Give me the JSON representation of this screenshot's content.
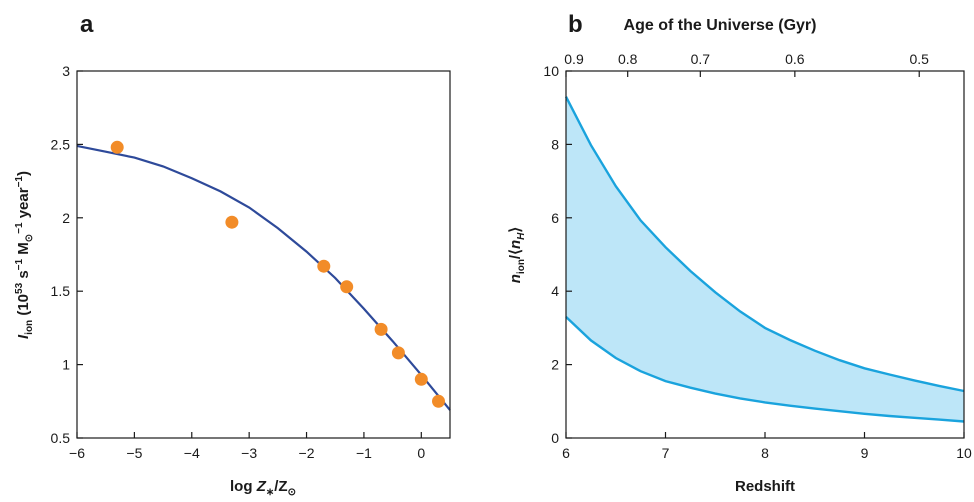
{
  "chart_data": [
    {
      "panel_label": "a",
      "type": "scatter",
      "xlabel": "log Z∗/Z⊙",
      "ylabel": "I_ion (10^53 s^−1 M⊙^−1 year^−1)",
      "xlim": [
        -6,
        0.5
      ],
      "ylim": [
        0.5,
        3
      ],
      "x_ticks": [
        -6,
        -5,
        -4,
        -3,
        -2,
        -1,
        0
      ],
      "x_tick_labels": [
        "−6",
        "−5",
        "−4",
        "−3",
        "−2",
        "−1",
        "0"
      ],
      "y_ticks": [
        0.5,
        1,
        1.5,
        2,
        2.5,
        3
      ],
      "y_tick_labels": [
        "0.5",
        "1",
        "1.5",
        "2",
        "2.5",
        "3"
      ],
      "points": {
        "color": "#f28c28",
        "x": [
          -5.3,
          -3.3,
          -1.7,
          -1.3,
          -0.7,
          -0.4,
          0.0,
          0.3
        ],
        "y": [
          2.48,
          1.97,
          1.67,
          1.53,
          1.24,
          1.08,
          0.9,
          0.75
        ]
      },
      "fit_curve": {
        "color": "#2e4a9a",
        "x": [
          -6.0,
          -5.5,
          -5.0,
          -4.5,
          -4.0,
          -3.5,
          -3.0,
          -2.5,
          -2.0,
          -1.5,
          -1.0,
          -0.5,
          0.0,
          0.5
        ],
        "y": [
          2.49,
          2.45,
          2.41,
          2.35,
          2.27,
          2.18,
          2.07,
          1.93,
          1.77,
          1.59,
          1.38,
          1.16,
          0.93,
          0.69
        ]
      }
    },
    {
      "panel_label": "b",
      "type": "area",
      "xlabel": "Redshift",
      "ylabel": "n_ion/⟨n_H⟩",
      "top_xlabel": "Age of the Universe (Gyr)",
      "xlim": [
        6,
        10
      ],
      "ylim": [
        0,
        10
      ],
      "x_ticks": [
        6,
        7,
        8,
        9,
        10
      ],
      "x_tick_labels": [
        "6",
        "7",
        "8",
        "9",
        "10"
      ],
      "y_ticks": [
        0,
        2,
        4,
        6,
        8,
        10
      ],
      "y_tick_labels": [
        "0",
        "2",
        "4",
        "6",
        "8",
        "10"
      ],
      "top_ticks": [
        {
          "age": "0.9",
          "z": 6.0
        },
        {
          "age": "0.8",
          "z": 6.62
        },
        {
          "age": "0.7",
          "z": 7.35
        },
        {
          "age": "0.6",
          "z": 8.3
        },
        {
          "age": "0.5",
          "z": 9.55
        }
      ],
      "band": {
        "fill": "#bde6f8",
        "line_color": "#1aa3dd",
        "x": [
          6.0,
          6.25,
          6.5,
          6.75,
          7.0,
          7.25,
          7.5,
          7.75,
          8.0,
          8.25,
          8.5,
          8.75,
          9.0,
          9.25,
          9.5,
          9.75,
          10.0
        ],
        "upper": [
          9.3,
          7.98,
          6.86,
          5.93,
          5.2,
          4.55,
          3.97,
          3.45,
          3.0,
          2.67,
          2.38,
          2.12,
          1.9,
          1.73,
          1.57,
          1.42,
          1.28
        ],
        "lower": [
          3.3,
          2.66,
          2.18,
          1.82,
          1.55,
          1.37,
          1.21,
          1.08,
          0.97,
          0.88,
          0.8,
          0.73,
          0.66,
          0.6,
          0.55,
          0.5,
          0.45
        ]
      }
    }
  ]
}
